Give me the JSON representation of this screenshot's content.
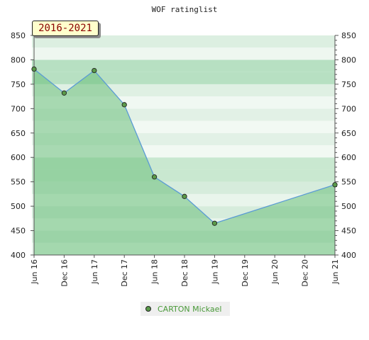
{
  "chart_data": {
    "type": "line",
    "title": "WOF ratinglist",
    "period": "2016-2021",
    "x": [
      "Jun 16",
      "Dec 16",
      "Jun 17",
      "Dec 17",
      "Jun 18",
      "Dec 18",
      "Jun 19",
      "Dec 19",
      "Jun 20",
      "Dec 20",
      "Jun 21"
    ],
    "series": [
      {
        "name": "CARTON Mickael",
        "color": "#5b9bd5",
        "fill_color": "#6cbf7c",
        "points": [
          {
            "x": "Jun 16",
            "y": 781
          },
          {
            "x": "Dec 16",
            "y": 732
          },
          {
            "x": "Jun 17",
            "y": 778
          },
          {
            "x": "Dec 17",
            "y": 708
          },
          {
            "x": "Jun 18",
            "y": 560
          },
          {
            "x": "Dec 18",
            "y": 520
          },
          {
            "x": "Jun 19",
            "y": 465
          },
          {
            "x": "Jun 21",
            "y": 544
          }
        ]
      }
    ],
    "ylim": [
      400,
      850
    ],
    "yticks": [
      400,
      450,
      500,
      550,
      600,
      650,
      700,
      750,
      800,
      850
    ],
    "y_axis_sides": "left-and-right",
    "grid": "horizontal-bands",
    "legend": "bottom-center"
  }
}
